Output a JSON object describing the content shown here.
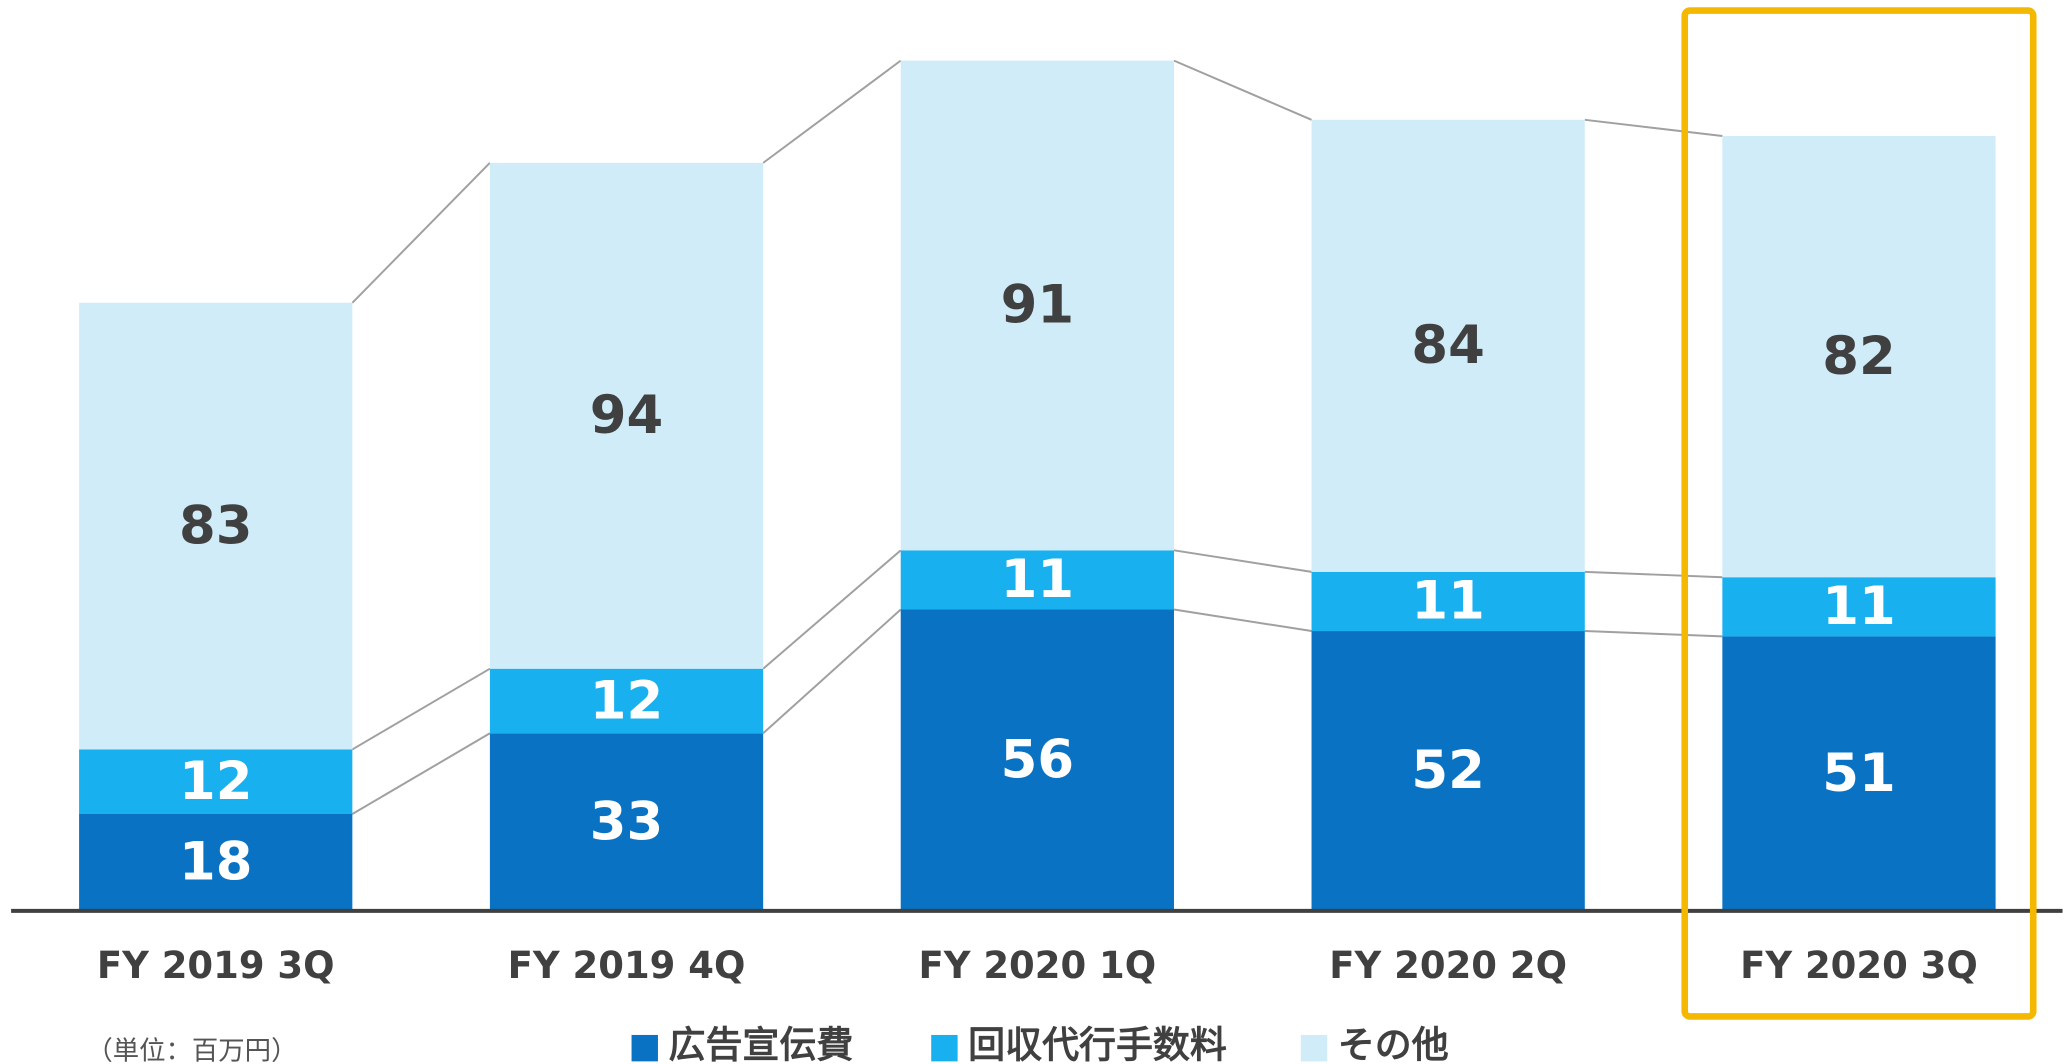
{
  "chart_data": {
    "type": "bar",
    "stacked": true,
    "categories": [
      "FY 2019 3Q",
      "FY 2019 4Q",
      "FY 2020 1Q",
      "FY 2020 2Q",
      "FY 2020 3Q"
    ],
    "series": [
      {
        "name": "広告宣伝費",
        "color": "#0a72c2",
        "values": [
          18,
          33,
          56,
          52,
          51
        ]
      },
      {
        "name": "回収代行手数料",
        "color": "#18b0ee",
        "values": [
          12,
          12,
          11,
          11,
          11
        ]
      },
      {
        "name": "その他",
        "color": "#d0ecf9",
        "values": [
          83,
          94,
          91,
          84,
          82
        ]
      }
    ],
    "ylim": [
      0,
      170
    ],
    "unit_label": "（単位：百万円）",
    "highlight": 4,
    "highlight_color": "#f5b800"
  }
}
